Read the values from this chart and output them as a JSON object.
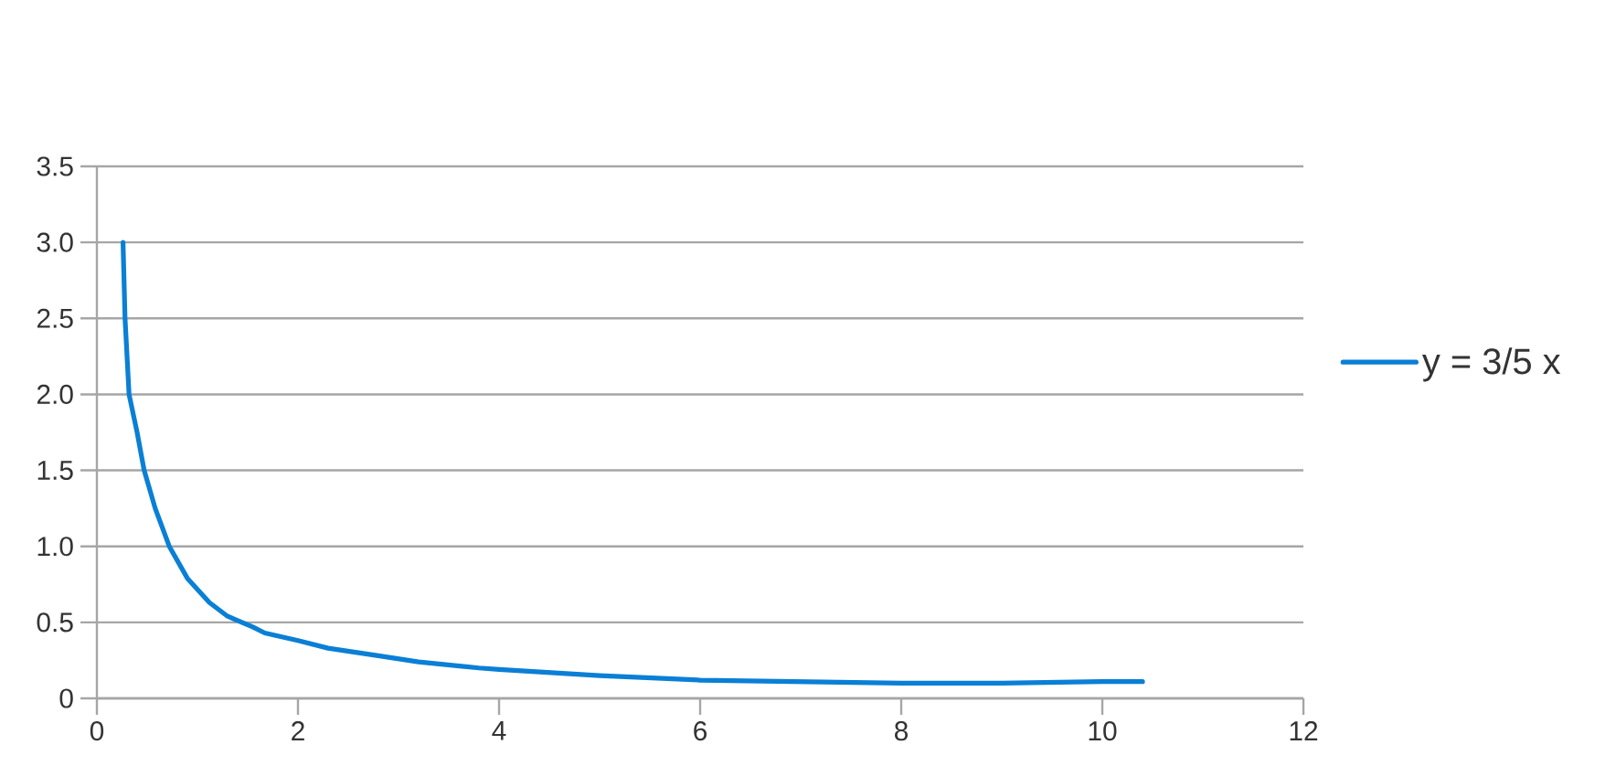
{
  "chart_data": {
    "type": "line",
    "x": [
      0.26,
      0.28,
      0.32,
      0.4,
      0.47,
      0.58,
      0.72,
      0.9,
      1.12,
      1.3,
      1.55,
      1.67,
      2,
      2.3,
      2.8,
      3.2,
      3.8,
      4,
      5,
      6,
      7,
      8,
      9,
      10,
      10.4
    ],
    "series": [
      {
        "name": "y = 3/5 x",
        "color": "#0a7fd6",
        "values": [
          3.0,
          2.5,
          2.0,
          1.75,
          1.5,
          1.25,
          1.0,
          0.79,
          0.63,
          0.54,
          0.47,
          0.43,
          0.38,
          0.33,
          0.28,
          0.24,
          0.2,
          0.19,
          0.15,
          0.12,
          0.11,
          0.1,
          0.1,
          0.11,
          0.11
        ]
      }
    ],
    "xlim": [
      0,
      12
    ],
    "xticks": [
      0,
      2,
      4,
      6,
      8,
      10,
      12
    ],
    "ylim": [
      0,
      3.5
    ],
    "yticks": [
      0,
      0.5,
      {
        "value": 1,
        "label": "1.0"
      },
      1.5,
      {
        "value": 2,
        "label": "2.0"
      },
      2.5,
      {
        "value": 3,
        "label": "3.0"
      },
      3.5
    ],
    "grid": "y",
    "legend": "right"
  }
}
